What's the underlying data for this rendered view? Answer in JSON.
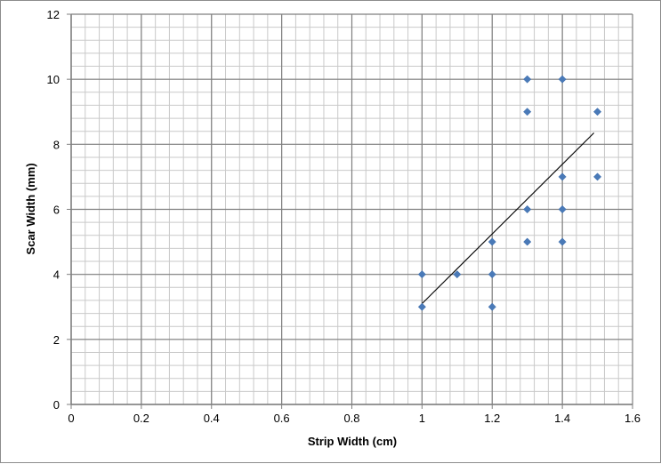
{
  "chart_data": {
    "type": "scatter",
    "title": "",
    "xlabel": "Strip Width  (cm)",
    "ylabel": "Scar Width (mm)",
    "xlim": [
      0,
      1.6
    ],
    "ylim": [
      0,
      12
    ],
    "x_major_ticks": [
      "0",
      "0.2",
      "0.4",
      "0.6",
      "0.8",
      "1",
      "1.2",
      "1.4",
      "1.6"
    ],
    "y_major_ticks": [
      "0",
      "2",
      "4",
      "6",
      "8",
      "10",
      "12"
    ],
    "x_major_step": 0.2,
    "x_minor_step": 0.04,
    "y_major_step": 2,
    "y_minor_step": 0.4,
    "grid": true,
    "legend": "none",
    "marker_color": "#4a7ab8",
    "trendline_color": "#000000",
    "series": [
      {
        "points": [
          [
            1.0,
            4
          ],
          [
            1.0,
            3
          ],
          [
            1.1,
            4
          ],
          [
            1.2,
            5
          ],
          [
            1.2,
            4
          ],
          [
            1.2,
            3
          ],
          [
            1.3,
            10
          ],
          [
            1.3,
            9
          ],
          [
            1.3,
            6
          ],
          [
            1.3,
            5
          ],
          [
            1.4,
            10
          ],
          [
            1.4,
            7
          ],
          [
            1.4,
            6
          ],
          [
            1.4,
            5
          ],
          [
            1.5,
            9
          ],
          [
            1.5,
            7
          ]
        ],
        "trendline": {
          "type": "linear",
          "x_start": 1.0,
          "y_start": 3.1,
          "x_end": 1.49,
          "y_end": 8.35
        }
      }
    ]
  }
}
